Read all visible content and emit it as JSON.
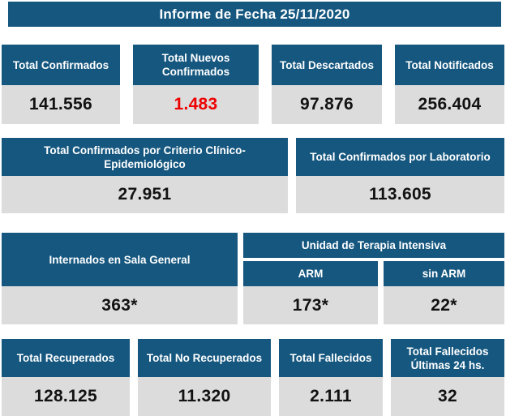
{
  "title": "Informe de Fecha 25/11/2020",
  "colors": {
    "header_bg": "#15577F",
    "value_bg": "#DCDCDC",
    "header_fg": "#FFFFFF",
    "value_fg": "#121212",
    "highlight": "#EE0000"
  },
  "rows": {
    "summary": [
      {
        "label": "Total Confirmados",
        "value": "141.556"
      },
      {
        "label": "Total Nuevos Confirmados",
        "value": "1.483",
        "highlight": true
      },
      {
        "label": "Total Descartados",
        "value": "97.876"
      },
      {
        "label": "Total Notificados",
        "value": "256.404"
      }
    ],
    "criteria": [
      {
        "label": "Total Confirmados por Criterio Clínico-Epidemiológico",
        "value": "27.951"
      },
      {
        "label": "Total Confirmados por Laboratorio",
        "value": "113.605"
      }
    ],
    "hospitalization": {
      "general_ward": {
        "label": "Internados en Sala General",
        "value": "363*"
      },
      "icu": {
        "label": "Unidad de Terapia Intensiva",
        "columns": [
          {
            "label": "ARM",
            "value": "173*"
          },
          {
            "label": "sin ARM",
            "value": "22*"
          }
        ]
      }
    },
    "outcomes": [
      {
        "label": "Total Recuperados",
        "value": "128.125"
      },
      {
        "label": "Total No Recuperados",
        "value": "11.320"
      },
      {
        "label": "Total Fallecidos",
        "value": "2.111"
      },
      {
        "label": "Total Fallecidos Últimas 24 hs.",
        "value": "32"
      }
    ]
  }
}
